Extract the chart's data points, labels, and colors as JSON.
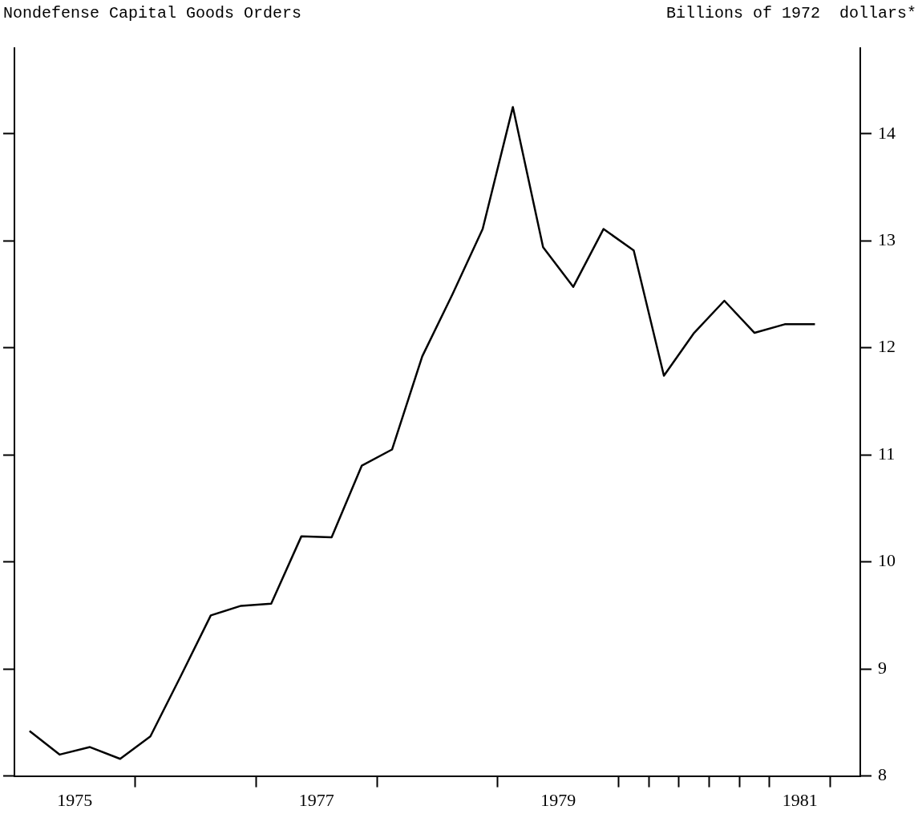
{
  "chart_data": {
    "type": "line",
    "title": "Nondefense Capital Goods Orders",
    "ylabel": "Billions of 1972  dollars*",
    "x": [
      1975.125,
      1975.375,
      1975.625,
      1975.875,
      1976.125,
      1976.375,
      1976.625,
      1976.875,
      1977.125,
      1977.375,
      1977.625,
      1977.875,
      1978.125,
      1978.375,
      1978.625,
      1978.875,
      1979.125,
      1979.375,
      1979.625,
      1979.875,
      1980.125,
      1980.375,
      1980.625,
      1980.875,
      1981.125,
      1981.375,
      1981.625
    ],
    "series": [
      {
        "color": "#000000",
        "values": [
          8.42,
          8.2,
          8.27,
          8.16,
          8.37,
          8.93,
          9.5,
          9.59,
          9.61,
          10.24,
          10.23,
          10.9,
          11.05,
          11.92,
          12.5,
          13.11,
          14.25,
          12.94,
          12.57,
          13.11,
          12.91,
          11.74,
          12.14,
          12.44,
          12.14,
          12.22,
          12.22
        ]
      }
    ],
    "xlim": [
      1975,
      1982
    ],
    "xticks": [
      {
        "value": 1975.5,
        "label": "1975"
      },
      {
        "value": 1976,
        "label": null
      },
      {
        "value": 1977,
        "label": null
      },
      {
        "value": 1977.5,
        "label": "1977"
      },
      {
        "value": 1978,
        "label": null
      },
      {
        "value": 1979,
        "label": null
      },
      {
        "value": 1979.5,
        "label": "1979"
      },
      {
        "value": 1980,
        "label": null
      },
      {
        "value": 1980.25,
        "label": null
      },
      {
        "value": 1980.5,
        "label": null
      },
      {
        "value": 1980.75,
        "label": null
      },
      {
        "value": 1981,
        "label": null
      },
      {
        "value": 1981.25,
        "label": null
      },
      {
        "value": 1981.5,
        "label": "1981"
      },
      {
        "value": 1981.75,
        "label": null
      }
    ],
    "ylim": [
      8,
      14.8
    ],
    "yticks": [
      8,
      9,
      10,
      11,
      12,
      13,
      14
    ]
  }
}
